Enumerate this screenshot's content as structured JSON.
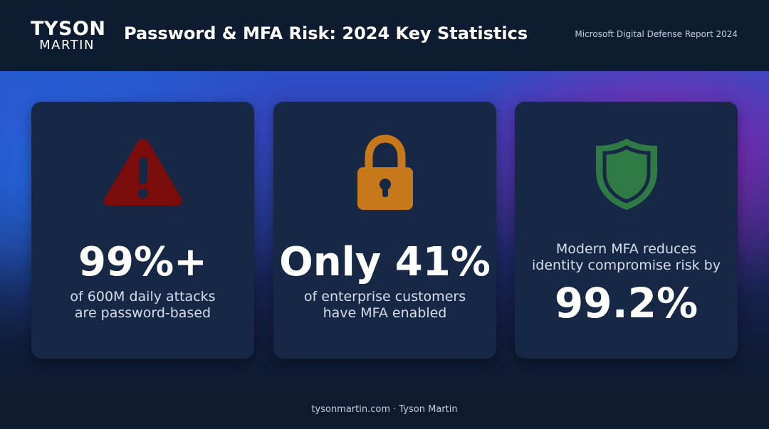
{
  "brand": {
    "line1": "TYSON",
    "line2": "MARTIN"
  },
  "header": {
    "title": "Password & MFA Risk: 2024 Key Statistics",
    "source": "Microsoft Digital Defense Report 2024"
  },
  "cards": [
    {
      "icon": "warning-triangle-icon",
      "icon_color": "#7a0c0c",
      "value": "99%+",
      "caption_line1": "of 600M daily attacks",
      "caption_line2": "are password-based"
    },
    {
      "icon": "padlock-icon",
      "icon_color": "#c7781a",
      "value": "Only 41%",
      "caption_line1": "of enterprise customers",
      "caption_line2": "have MFA enabled"
    },
    {
      "icon": "shield-icon",
      "icon_color": "#2f7a45",
      "lead_line1": "Modern MFA reduces",
      "lead_line2": "identity compromise risk by",
      "value": "99.2%"
    }
  ],
  "footer": {
    "text": "tysonmartin.com · Tyson Martin"
  }
}
